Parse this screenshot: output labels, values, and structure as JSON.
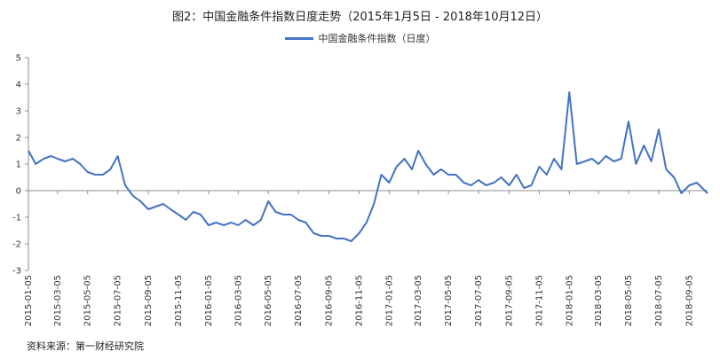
{
  "chart_data": {
    "type": "line",
    "title": "图2：中国金融条件指数日度走势（2015年1月5日 - 2018年10月12日）",
    "xlabel": "",
    "ylabel": "",
    "ylim": [
      -3,
      5
    ],
    "y_ticks": [
      "5",
      "4",
      "3",
      "2",
      "1",
      "0",
      "-1",
      "-2",
      "-3"
    ],
    "x_tick_labels": [
      "2015-01-05",
      "2015-03-05",
      "2015-05-05",
      "2015-07-05",
      "2015-09-05",
      "2015-11-05",
      "2016-01-05",
      "2016-03-05",
      "2016-05-05",
      "2016-07-05",
      "2016-09-05",
      "2016-11-05",
      "2017-01-05",
      "2017-03-05",
      "2017-05-05",
      "2017-07-05",
      "2017-09-05",
      "2017-11-05",
      "2018-01-05",
      "2018-03-05",
      "2018-05-05",
      "2018-07-05",
      "2018-09-05"
    ],
    "legend_position": "top-center",
    "color": "#4472C4",
    "series": [
      {
        "name": "中国金融条件指数（日度）",
        "x": [
          "2015-01-05",
          "2015-01-20",
          "2015-02-05",
          "2015-02-20",
          "2015-03-05",
          "2015-03-20",
          "2015-04-05",
          "2015-04-20",
          "2015-05-05",
          "2015-05-20",
          "2015-06-05",
          "2015-06-20",
          "2015-07-05",
          "2015-07-20",
          "2015-08-05",
          "2015-08-20",
          "2015-09-05",
          "2015-09-20",
          "2015-10-05",
          "2015-10-20",
          "2015-11-05",
          "2015-11-20",
          "2015-12-05",
          "2015-12-20",
          "2016-01-05",
          "2016-01-20",
          "2016-02-05",
          "2016-02-20",
          "2016-03-05",
          "2016-03-20",
          "2016-04-05",
          "2016-04-20",
          "2016-05-05",
          "2016-05-20",
          "2016-06-05",
          "2016-06-20",
          "2016-07-05",
          "2016-07-20",
          "2016-08-05",
          "2016-08-20",
          "2016-09-05",
          "2016-09-20",
          "2016-10-05",
          "2016-10-20",
          "2016-11-05",
          "2016-11-20",
          "2016-12-05",
          "2016-12-20",
          "2017-01-05",
          "2017-01-20",
          "2017-02-05",
          "2017-02-20",
          "2017-03-05",
          "2017-03-20",
          "2017-04-05",
          "2017-04-20",
          "2017-05-05",
          "2017-05-20",
          "2017-06-05",
          "2017-06-20",
          "2017-07-05",
          "2017-07-20",
          "2017-08-05",
          "2017-08-20",
          "2017-09-05",
          "2017-09-20",
          "2017-10-05",
          "2017-10-20",
          "2017-11-05",
          "2017-11-20",
          "2017-12-05",
          "2017-12-20",
          "2018-01-05",
          "2018-01-20",
          "2018-02-05",
          "2018-02-20",
          "2018-03-05",
          "2018-03-20",
          "2018-04-05",
          "2018-04-20",
          "2018-05-05",
          "2018-05-20",
          "2018-06-05",
          "2018-06-20",
          "2018-07-05",
          "2018-07-20",
          "2018-08-05",
          "2018-08-20",
          "2018-09-05",
          "2018-09-20",
          "2018-10-12"
        ],
        "values": [
          1.5,
          1.0,
          1.2,
          1.3,
          1.2,
          1.1,
          1.2,
          1.0,
          0.7,
          0.6,
          0.6,
          0.8,
          1.3,
          0.2,
          -0.2,
          -0.4,
          -0.7,
          -0.6,
          -0.5,
          -0.7,
          -0.9,
          -1.1,
          -0.8,
          -0.9,
          -1.3,
          -1.2,
          -1.3,
          -1.2,
          -1.3,
          -1.1,
          -1.3,
          -1.1,
          -0.4,
          -0.8,
          -0.9,
          -0.9,
          -1.1,
          -1.2,
          -1.6,
          -1.7,
          -1.7,
          -1.8,
          -1.8,
          -1.9,
          -1.6,
          -1.2,
          -0.5,
          0.6,
          0.3,
          0.9,
          1.2,
          0.8,
          1.5,
          1.0,
          0.6,
          0.8,
          0.6,
          0.6,
          0.3,
          0.2,
          0.4,
          0.2,
          0.3,
          0.5,
          0.2,
          0.6,
          0.1,
          0.2,
          0.9,
          0.6,
          1.2,
          0.8,
          3.7,
          1.0,
          1.1,
          1.2,
          1.0,
          1.3,
          1.1,
          1.2,
          2.6,
          1.0,
          1.7,
          1.1,
          2.3,
          0.8,
          0.5,
          -0.1,
          0.2,
          0.3,
          -0.1
        ]
      }
    ]
  },
  "source_note": "资料来源：第一财经研究院"
}
